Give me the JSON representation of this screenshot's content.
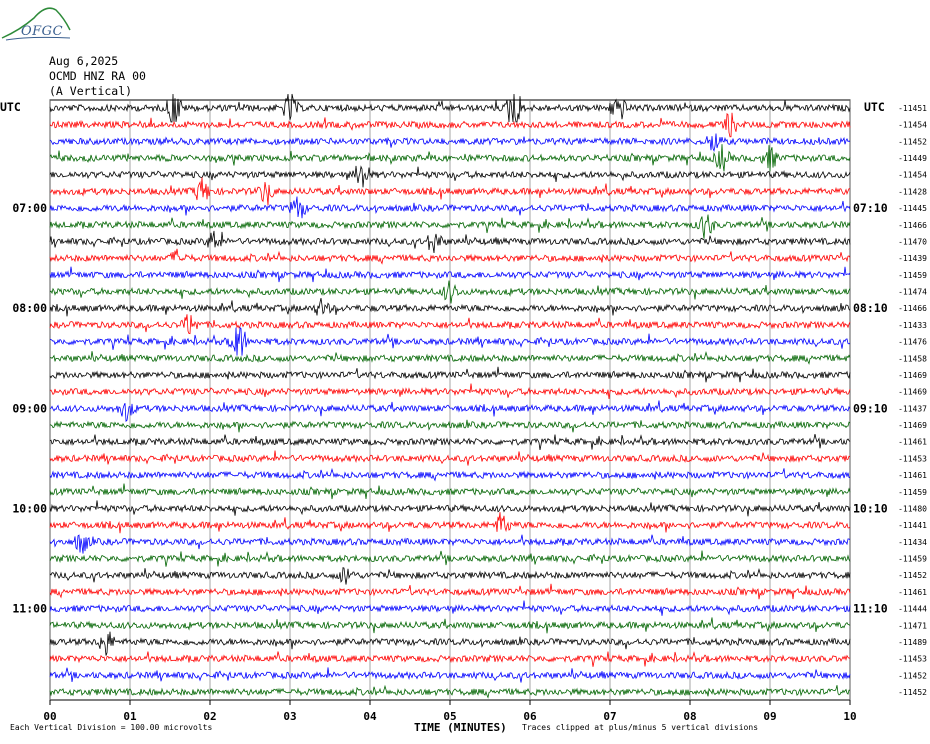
{
  "logo": {
    "text": "OFGC"
  },
  "header": {
    "date": "Aug 6,2025",
    "station": "OCMD HNZ RA 00",
    "component": "(A Vertical)"
  },
  "left_utc_label": "UTC",
  "right_utc_label": "UTC",
  "footer": {
    "left_note": "Each Vertical Division =  100.00 microvolts",
    "right_note": "Traces clipped at plus/minus 5 vertical divisions"
  },
  "chart_data": {
    "type": "line",
    "title": "",
    "xlabel": "TIME (MINUTES)",
    "xlim": [
      0,
      10
    ],
    "x_ticks": [
      "00",
      "01",
      "02",
      "03",
      "04",
      "05",
      "06",
      "07",
      "08",
      "09",
      "10"
    ],
    "left_time_labels": [
      {
        "trace": 6,
        "label": "07:00"
      },
      {
        "trace": 12,
        "label": "08:00"
      },
      {
        "trace": 18,
        "label": "09:00"
      },
      {
        "trace": 24,
        "label": "10:00"
      },
      {
        "trace": 30,
        "label": "11:00"
      }
    ],
    "right_time_labels": [
      {
        "trace": 6,
        "label": "07:10"
      },
      {
        "trace": 12,
        "label": "08:10"
      },
      {
        "trace": 18,
        "label": "09:10"
      },
      {
        "trace": 24,
        "label": "10:10"
      },
      {
        "trace": 30,
        "label": "11:10"
      }
    ],
    "trace_colors": [
      "#000000",
      "#ff0000",
      "#0000ff",
      "#006400"
    ],
    "traces": [
      {
        "offset": "-11451",
        "events": [
          {
            "x": 1.55,
            "amp": 1.6
          },
          {
            "x": 3.0,
            "amp": 1.2
          },
          {
            "x": 5.8,
            "amp": 2.4
          },
          {
            "x": 7.1,
            "amp": 1.2
          }
        ]
      },
      {
        "offset": "-11454",
        "events": [
          {
            "x": 8.5,
            "amp": 0.9
          }
        ]
      },
      {
        "offset": "-11452",
        "events": [
          {
            "x": 8.3,
            "amp": 0.8
          }
        ]
      },
      {
        "offset": "-11449",
        "events": [
          {
            "x": 8.4,
            "amp": 1.0
          },
          {
            "x": 9.0,
            "amp": 0.9
          }
        ]
      },
      {
        "offset": "-11454",
        "events": [
          {
            "x": 3.9,
            "amp": 1.3
          }
        ]
      },
      {
        "offset": "-11428",
        "events": [
          {
            "x": 1.9,
            "amp": 1.0
          },
          {
            "x": 2.7,
            "amp": 0.9
          }
        ]
      },
      {
        "offset": "-11445",
        "events": [
          {
            "x": 3.1,
            "amp": 1.0
          }
        ]
      },
      {
        "offset": "-11466",
        "events": [
          {
            "x": 8.2,
            "amp": 1.1
          }
        ]
      },
      {
        "offset": "-11470",
        "events": [
          {
            "x": 2.05,
            "amp": 0.8
          },
          {
            "x": 4.8,
            "amp": 0.9
          }
        ]
      },
      {
        "offset": "-11439",
        "events": [
          {
            "x": 1.6,
            "amp": 0.6
          }
        ]
      },
      {
        "offset": "-11459",
        "events": []
      },
      {
        "offset": "-11474",
        "events": [
          {
            "x": 5.0,
            "amp": 0.8
          }
        ]
      },
      {
        "offset": "-11466",
        "events": [
          {
            "x": 3.4,
            "amp": 0.7
          }
        ]
      },
      {
        "offset": "-11433",
        "events": [
          {
            "x": 1.75,
            "amp": 0.9
          }
        ]
      },
      {
        "offset": "-11476",
        "events": [
          {
            "x": 2.35,
            "amp": 2.6
          }
        ]
      },
      {
        "offset": "-11458",
        "events": []
      },
      {
        "offset": "-11469",
        "events": []
      },
      {
        "offset": "-11469",
        "events": []
      },
      {
        "offset": "-11437",
        "events": [
          {
            "x": 0.95,
            "amp": 0.8
          }
        ]
      },
      {
        "offset": "-11469",
        "events": []
      },
      {
        "offset": "-11461",
        "events": []
      },
      {
        "offset": "-11453",
        "events": []
      },
      {
        "offset": "-11461",
        "events": []
      },
      {
        "offset": "-11459",
        "events": []
      },
      {
        "offset": "-11480",
        "events": []
      },
      {
        "offset": "-11441",
        "events": [
          {
            "x": 5.65,
            "amp": 1.0
          }
        ]
      },
      {
        "offset": "-11434",
        "events": [
          {
            "x": 0.4,
            "amp": 0.9
          }
        ]
      },
      {
        "offset": "-11459",
        "events": []
      },
      {
        "offset": "-11452",
        "events": [
          {
            "x": 3.7,
            "amp": 0.7
          }
        ]
      },
      {
        "offset": "-11461",
        "events": []
      },
      {
        "offset": "-11444",
        "events": []
      },
      {
        "offset": "-11471",
        "events": []
      },
      {
        "offset": "-11489",
        "events": [
          {
            "x": 0.7,
            "amp": 1.1
          }
        ]
      },
      {
        "offset": "-11453",
        "events": []
      },
      {
        "offset": "-11452",
        "events": []
      },
      {
        "offset": "-11452",
        "events": []
      }
    ]
  }
}
